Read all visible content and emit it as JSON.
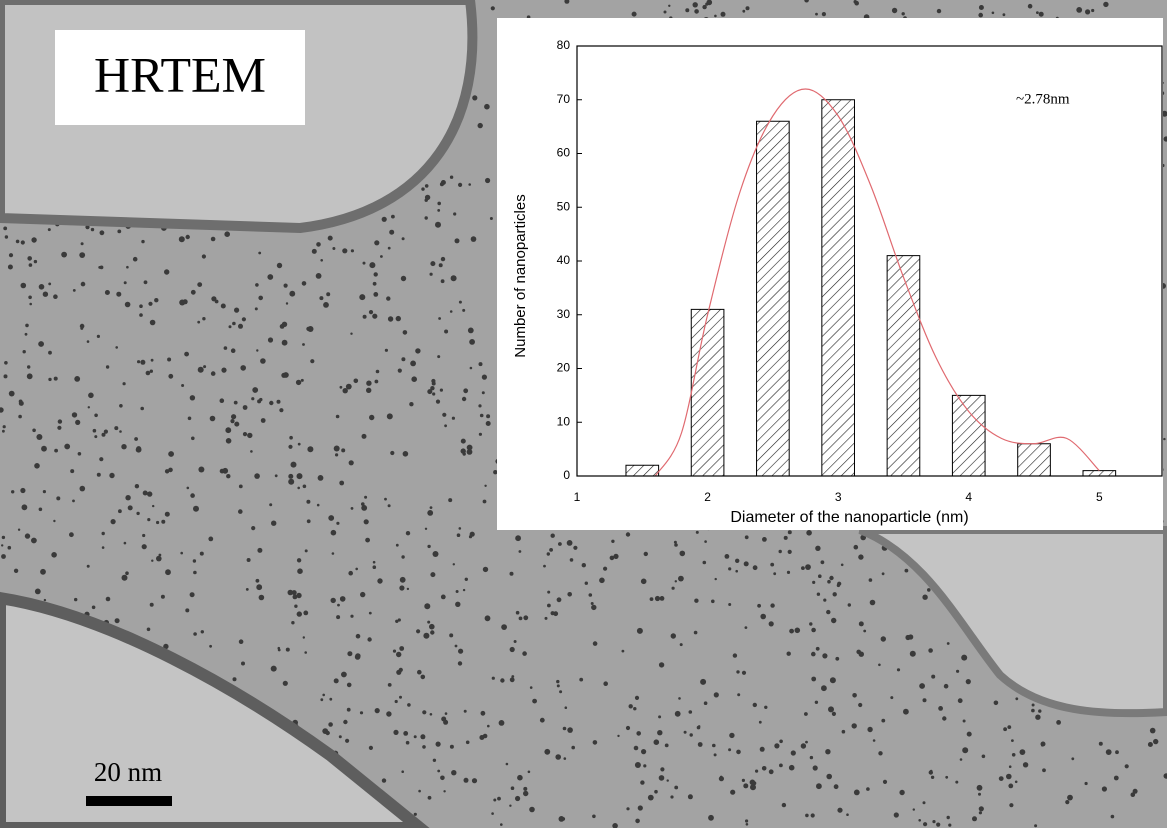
{
  "image": {
    "title": "HRTEM",
    "scale_bar": "20 nm"
  },
  "chart_data": {
    "type": "bar",
    "x_label": "Diameter of the nanoparticle (nm)",
    "y_label": "Number of nanoparticles",
    "annotation": "~2.78nm",
    "x": [
      1.5,
      2.0,
      2.5,
      3.0,
      3.5,
      4.0,
      4.5,
      5.0
    ],
    "values": [
      2,
      31,
      66,
      70,
      41,
      15,
      6,
      1
    ],
    "color": "#000000",
    "line": {
      "x": [
        1.6,
        1.8,
        2.0,
        2.25,
        2.5,
        2.75,
        3.0,
        3.25,
        3.5,
        3.75,
        4.0,
        4.25,
        4.5,
        4.75,
        5.0
      ],
      "values": [
        0,
        8,
        30,
        53,
        67,
        72,
        67,
        54,
        37,
        22,
        12,
        7,
        6,
        7,
        1
      ],
      "color": "#e06a70"
    },
    "xlim": [
      1,
      5.48
    ],
    "xticks": [
      1,
      2,
      3,
      4,
      5
    ],
    "ylim": [
      0,
      80
    ],
    "yticks": [
      0,
      10,
      20,
      30,
      40,
      50,
      60,
      70,
      80
    ]
  }
}
